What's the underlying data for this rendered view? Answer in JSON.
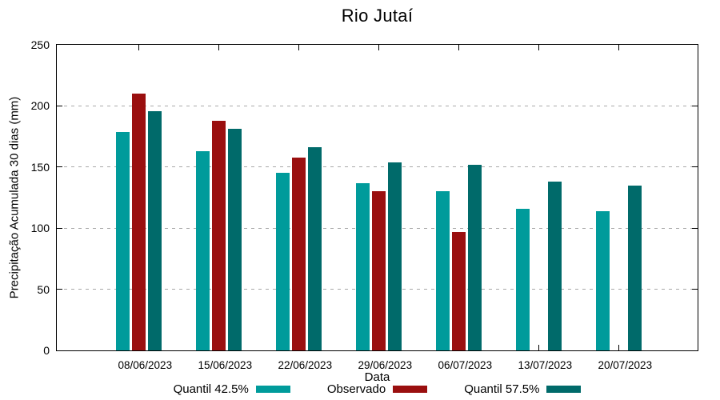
{
  "chart_data": {
    "type": "bar",
    "title": "Rio Jutaí",
    "xlabel": "Data",
    "ylabel": "Precipitação Acumulada 30 dias (mm)",
    "categories": [
      "08/06/2023",
      "15/06/2023",
      "22/06/2023",
      "29/06/2023",
      "06/07/2023",
      "13/07/2023",
      "20/07/2023"
    ],
    "series": [
      {
        "name": "Quantil 42.5%",
        "color": "#009B9B",
        "values": [
          179,
          163,
          145,
          137,
          130,
          116,
          114
        ]
      },
      {
        "name": "Observado",
        "color": "#9A0F0F",
        "values": [
          210,
          188,
          158,
          130,
          97,
          null,
          null
        ]
      },
      {
        "name": "Quantil 57.5%",
        "color": "#006A6A",
        "values": [
          196,
          181,
          166,
          154,
          152,
          138,
          135
        ]
      }
    ],
    "ylim": [
      0,
      250
    ],
    "yticks": [
      0,
      50,
      100,
      150,
      200,
      250
    ],
    "grid": "horizontal-dashed",
    "legend_position": "bottom",
    "frame_color": "#000000",
    "grid_color": "#a9a9a9",
    "background": "#ffffff"
  }
}
